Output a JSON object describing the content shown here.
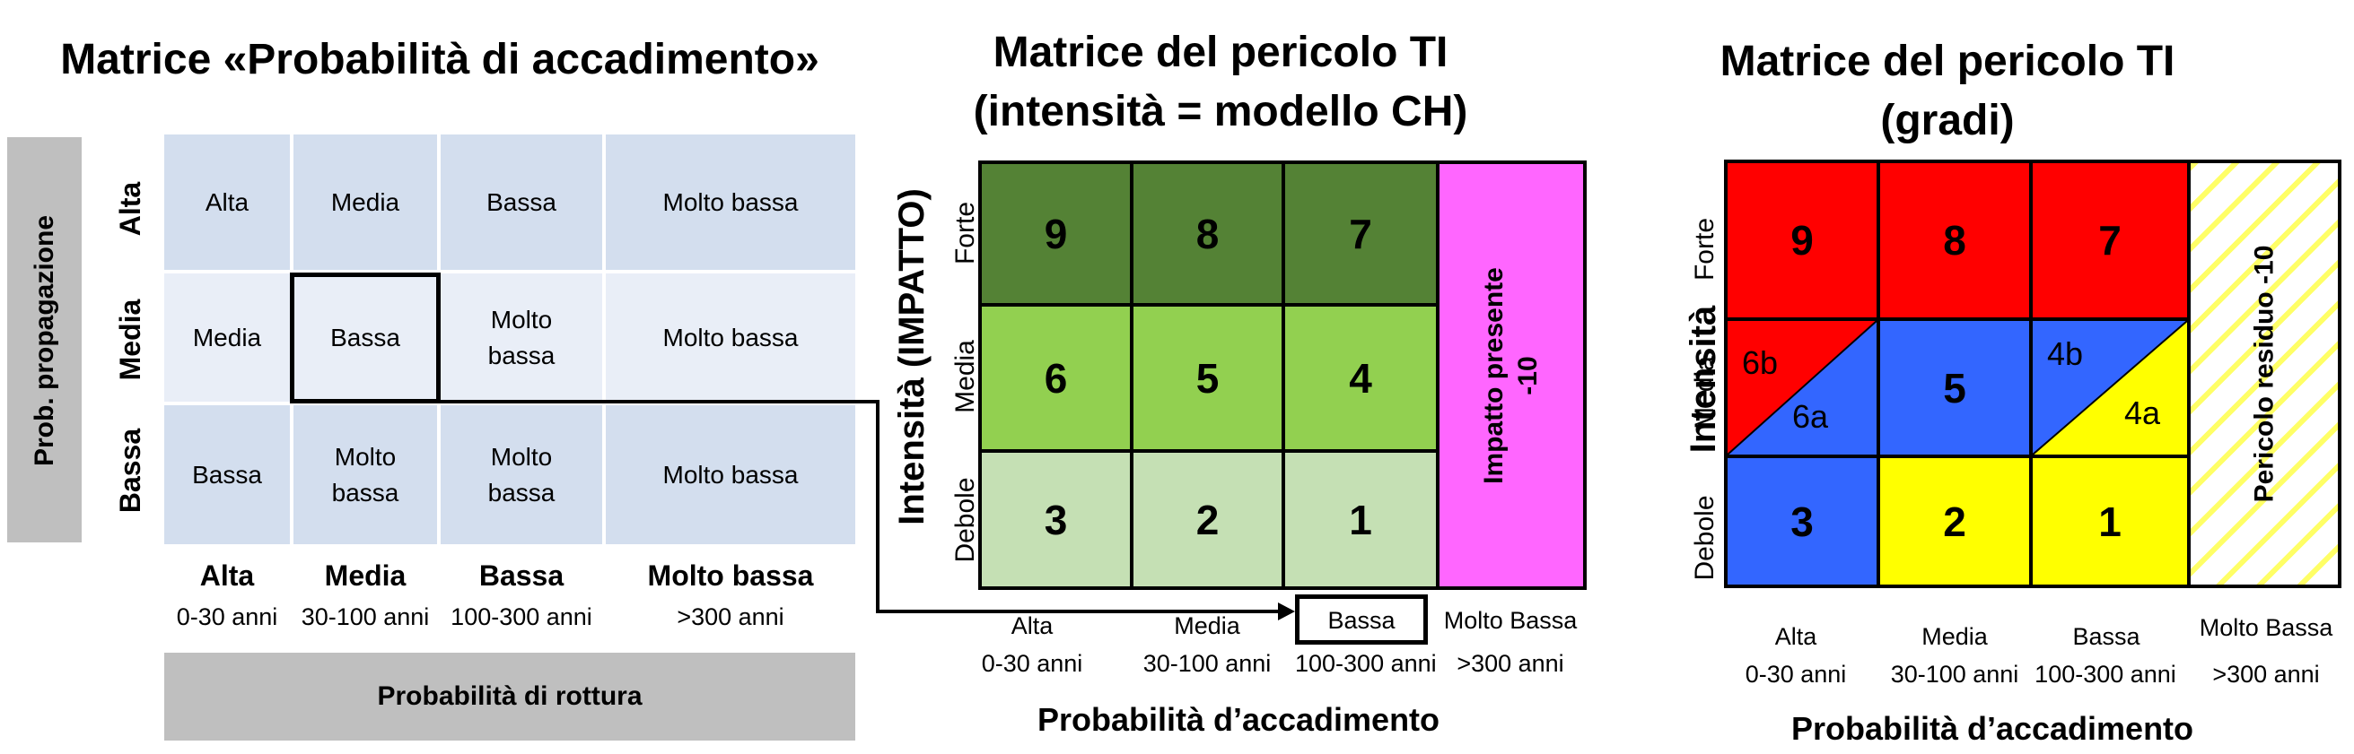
{
  "matrix1": {
    "title": "Matrice «Probabilità di accadimento»",
    "y_axis_label": "Prob. propagazione",
    "rows": [
      {
        "label": "Alta",
        "cells": [
          "Alta",
          "Media",
          "Bassa",
          "Molto bassa"
        ]
      },
      {
        "label": "Media",
        "cells": [
          "Media",
          "Bassa",
          "Molto bassa",
          "Molto bassa"
        ]
      },
      {
        "label": "Bassa",
        "cells": [
          "Bassa",
          "Molto bassa",
          "Molto bassa",
          "Molto bassa"
        ]
      }
    ],
    "columns": [
      {
        "label": "Alta",
        "range": "0-30 anni"
      },
      {
        "label": "Media",
        "range": "30-100 anni"
      },
      {
        "label": "Bassa",
        "range": "100-300 anni"
      },
      {
        "label": "Molto bassa",
        "range": ">300 anni"
      }
    ],
    "x_axis_label": "Probabilità di rottura",
    "highlighted_cell": {
      "row": 1,
      "column": 1
    },
    "colors": {
      "cell_fill": "#d3deee",
      "cell_fill_alt": "#e9eef7",
      "axis_band": "#bfbfbf"
    }
  },
  "matrix2": {
    "title_line1": "Matrice  del pericolo TI",
    "title_line2": "(intensità = modello CH)",
    "y_axis_label": "Intensità (IMPATTO)",
    "row_labels": [
      "Forte",
      "Media",
      "Debole"
    ],
    "rows": [
      [
        "9",
        "8",
        "7"
      ],
      [
        "6",
        "5",
        "4"
      ],
      [
        "3",
        "2",
        "1"
      ]
    ],
    "impact_label_line1": "Impatto presente",
    "impact_label_line2": "-10",
    "columns": [
      {
        "label": "Alta",
        "range": "0-30 anni"
      },
      {
        "label": "Media",
        "range": "30-100 anni"
      },
      {
        "label": "Bassa",
        "range": "100-300 anni"
      },
      {
        "label": "Molto Bassa",
        "range": ">300 anni"
      }
    ],
    "highlighted_column": "Bassa",
    "x_axis_label": "Probabilità d’accadimento",
    "colors": {
      "row_top": "#548235",
      "row_mid": "#92d050",
      "row_low": "#c5e0b4",
      "impact": "#ff66ff"
    }
  },
  "matrix3": {
    "title_line1": "Matrice  del pericolo TI",
    "title_line2": "(gradi)",
    "y_axis_label": "Intensità",
    "row_labels": [
      "Forte",
      "Media",
      "Debole"
    ],
    "top_row": [
      "9",
      "8",
      "7"
    ],
    "middle_row": {
      "left_upper": "6b",
      "left_lower": "6a",
      "center": "5",
      "right_upper": "4b",
      "right_lower": "4a"
    },
    "bottom_row": [
      "3",
      "2",
      "1"
    ],
    "residual_label": "Pericolo residuo -10",
    "columns": [
      {
        "label": "Alta",
        "range": "0-30 anni"
      },
      {
        "label": "Media",
        "range": "30-100 anni"
      },
      {
        "label": "Bassa",
        "range": "100-300 anni"
      },
      {
        "label": "Molto Bassa",
        "range": ">300 anni"
      }
    ],
    "x_axis_label": "Probabilità d’accadimento",
    "colors": {
      "red": "#ff0000",
      "blue": "#3366ff",
      "yellow": "#ffff00",
      "hatch": "#ffff66"
    }
  }
}
